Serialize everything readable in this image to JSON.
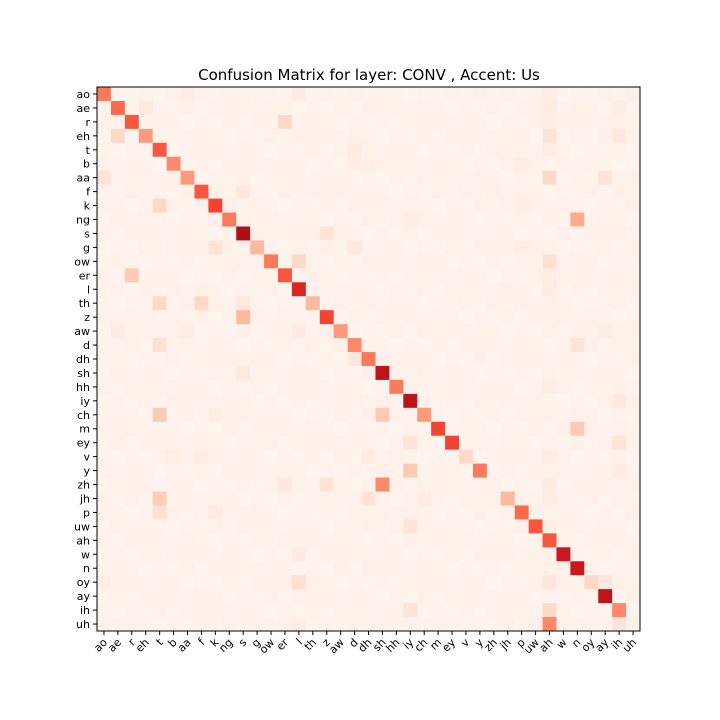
{
  "chart_data": {
    "type": "heatmap",
    "title": "Confusion Matrix for layer: CONV , Accent: Us",
    "xlabel": "",
    "ylabel": "",
    "colormap": "Reds",
    "row_labels": [
      "ao",
      "ae",
      "r",
      "eh",
      "t",
      "b",
      "aa",
      "f",
      "k",
      "ng",
      "s",
      "g",
      "ow",
      "er",
      "l",
      "th",
      "z",
      "aw",
      "d",
      "dh",
      "sh",
      "hh",
      "iy",
      "ch",
      "m",
      "ey",
      "v",
      "y",
      "zh",
      "jh",
      "p",
      "uw",
      "ah",
      "w",
      "n",
      "oy",
      "ay",
      "ih",
      "uh"
    ],
    "col_labels": [
      "ao",
      "ae",
      "r",
      "eh",
      "t",
      "b",
      "aa",
      "f",
      "k",
      "ng",
      "s",
      "g",
      "ow",
      "er",
      "l",
      "th",
      "z",
      "aw",
      "d",
      "dh",
      "sh",
      "hh",
      "iy",
      "ch",
      "m",
      "ey",
      "v",
      "y",
      "zh",
      "jh",
      "p",
      "uw",
      "ah",
      "w",
      "n",
      "oy",
      "ay",
      "ih",
      "uh"
    ],
    "value_range": [
      0,
      1
    ],
    "diagonal": [
      0.45,
      0.5,
      0.55,
      0.35,
      0.55,
      0.4,
      0.35,
      0.55,
      0.6,
      0.45,
      0.85,
      0.25,
      0.45,
      0.55,
      0.7,
      0.25,
      0.6,
      0.35,
      0.4,
      0.45,
      0.8,
      0.45,
      0.8,
      0.35,
      0.6,
      0.6,
      0.15,
      0.45,
      0.02,
      0.25,
      0.5,
      0.55,
      0.55,
      0.75,
      0.75,
      0.15,
      0.8,
      0.4,
      0.02
    ],
    "off_diagonal": [
      {
        "row": "ao",
        "col": "aa",
        "value": 0.05
      },
      {
        "row": "ao",
        "col": "l",
        "value": 0.06
      },
      {
        "row": "ao",
        "col": "ah",
        "value": 0.05
      },
      {
        "row": "ae",
        "col": "eh",
        "value": 0.07
      },
      {
        "row": "ae",
        "col": "ah",
        "value": 0.06
      },
      {
        "row": "ae",
        "col": "ih",
        "value": 0.05
      },
      {
        "row": "r",
        "col": "er",
        "value": 0.15
      },
      {
        "row": "r",
        "col": "ah",
        "value": 0.05
      },
      {
        "row": "eh",
        "col": "ae",
        "value": 0.15
      },
      {
        "row": "eh",
        "col": "ah",
        "value": 0.1
      },
      {
        "row": "eh",
        "col": "ih",
        "value": 0.08
      },
      {
        "row": "t",
        "col": "d",
        "value": 0.06
      },
      {
        "row": "t",
        "col": "ah",
        "value": 0.05
      },
      {
        "row": "b",
        "col": "d",
        "value": 0.05
      },
      {
        "row": "b",
        "col": "dh",
        "value": 0.04
      },
      {
        "row": "b",
        "col": "p",
        "value": 0.05
      },
      {
        "row": "aa",
        "col": "ao",
        "value": 0.1
      },
      {
        "row": "aa",
        "col": "ah",
        "value": 0.15
      },
      {
        "row": "aa",
        "col": "ay",
        "value": 0.1
      },
      {
        "row": "f",
        "col": "s",
        "value": 0.08
      },
      {
        "row": "f",
        "col": "th",
        "value": 0.03
      },
      {
        "row": "k",
        "col": "t",
        "value": 0.15
      },
      {
        "row": "k",
        "col": "p",
        "value": 0.05
      },
      {
        "row": "ng",
        "col": "n",
        "value": 0.3
      },
      {
        "row": "ng",
        "col": "iy",
        "value": 0.05
      },
      {
        "row": "s",
        "col": "z",
        "value": 0.1
      },
      {
        "row": "g",
        "col": "k",
        "value": 0.1
      },
      {
        "row": "g",
        "col": "d",
        "value": 0.08
      },
      {
        "row": "g",
        "col": "p",
        "value": 0.05
      },
      {
        "row": "ow",
        "col": "l",
        "value": 0.15
      },
      {
        "row": "ow",
        "col": "ah",
        "value": 0.12
      },
      {
        "row": "er",
        "col": "r",
        "value": 0.2
      },
      {
        "row": "er",
        "col": "ah",
        "value": 0.05
      },
      {
        "row": "l",
        "col": "ah",
        "value": 0.06
      },
      {
        "row": "th",
        "col": "t",
        "value": 0.15
      },
      {
        "row": "th",
        "col": "f",
        "value": 0.15
      },
      {
        "row": "th",
        "col": "s",
        "value": 0.08
      },
      {
        "row": "z",
        "col": "s",
        "value": 0.25
      },
      {
        "row": "aw",
        "col": "ae",
        "value": 0.06
      },
      {
        "row": "aw",
        "col": "aa",
        "value": 0.05
      },
      {
        "row": "aw",
        "col": "l",
        "value": 0.06
      },
      {
        "row": "aw",
        "col": "ay",
        "value": 0.05
      },
      {
        "row": "d",
        "col": "t",
        "value": 0.12
      },
      {
        "row": "d",
        "col": "n",
        "value": 0.1
      },
      {
        "row": "dh",
        "col": "d",
        "value": 0.08
      },
      {
        "row": "sh",
        "col": "s",
        "value": 0.07
      },
      {
        "row": "hh",
        "col": "ah",
        "value": 0.05
      },
      {
        "row": "iy",
        "col": "ih",
        "value": 0.08
      },
      {
        "row": "ch",
        "col": "t",
        "value": 0.2
      },
      {
        "row": "ch",
        "col": "sh",
        "value": 0.2
      },
      {
        "row": "ch",
        "col": "k",
        "value": 0.05
      },
      {
        "row": "m",
        "col": "n",
        "value": 0.2
      },
      {
        "row": "ey",
        "col": "iy",
        "value": 0.1
      },
      {
        "row": "ey",
        "col": "ih",
        "value": 0.1
      },
      {
        "row": "v",
        "col": "f",
        "value": 0.06
      },
      {
        "row": "v",
        "col": "dh",
        "value": 0.06
      },
      {
        "row": "v",
        "col": "b",
        "value": 0.04
      },
      {
        "row": "v",
        "col": "ah",
        "value": 0.06
      },
      {
        "row": "y",
        "col": "iy",
        "value": 0.2
      },
      {
        "row": "y",
        "col": "ih",
        "value": 0.06
      },
      {
        "row": "zh",
        "col": "sh",
        "value": 0.4
      },
      {
        "row": "zh",
        "col": "z",
        "value": 0.1
      },
      {
        "row": "zh",
        "col": "er",
        "value": 0.08
      },
      {
        "row": "zh",
        "col": "ah",
        "value": 0.06
      },
      {
        "row": "jh",
        "col": "t",
        "value": 0.18
      },
      {
        "row": "jh",
        "col": "dh",
        "value": 0.1
      },
      {
        "row": "jh",
        "col": "ch",
        "value": 0.06
      },
      {
        "row": "jh",
        "col": "ah",
        "value": 0.05
      },
      {
        "row": "p",
        "col": "t",
        "value": 0.12
      },
      {
        "row": "p",
        "col": "k",
        "value": 0.06
      },
      {
        "row": "uw",
        "col": "iy",
        "value": 0.1
      },
      {
        "row": "uw",
        "col": "ah",
        "value": 0.05
      },
      {
        "row": "w",
        "col": "l",
        "value": 0.06
      },
      {
        "row": "oy",
        "col": "l",
        "value": 0.12
      },
      {
        "row": "oy",
        "col": "ah",
        "value": 0.08
      },
      {
        "row": "oy",
        "col": "ay",
        "value": 0.08
      },
      {
        "row": "oy",
        "col": "ao",
        "value": 0.05
      },
      {
        "row": "ih",
        "col": "ah",
        "value": 0.15
      },
      {
        "row": "ih",
        "col": "iy",
        "value": 0.1
      },
      {
        "row": "uh",
        "col": "ah",
        "value": 0.4
      },
      {
        "row": "uh",
        "col": "ih",
        "value": 0.1
      },
      {
        "row": "uh",
        "col": "l",
        "value": 0.05
      }
    ]
  }
}
